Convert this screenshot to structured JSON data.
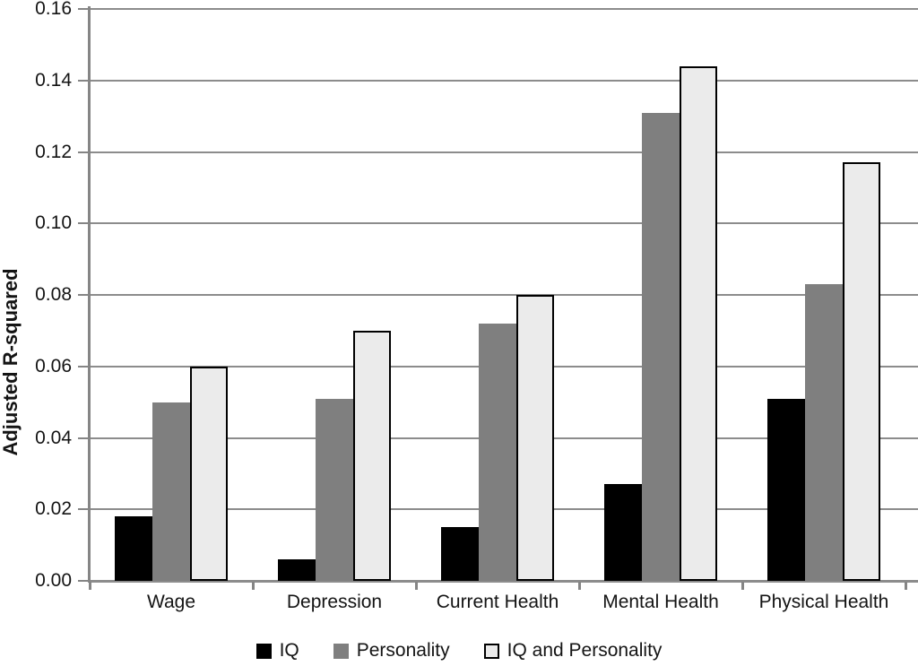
{
  "chart_data": {
    "type": "bar",
    "title": "",
    "xlabel": "",
    "ylabel": "Adjusted R-squared",
    "ylim": [
      0,
      0.16
    ],
    "ytick_step": 0.02,
    "ytick_labels": [
      "0.00",
      "0.02",
      "0.04",
      "0.06",
      "0.08",
      "0.10",
      "0.12",
      "0.14",
      "0.16"
    ],
    "grid": true,
    "legend_position": "bottom",
    "categories": [
      "Wage",
      "Depression",
      "Current Health",
      "Mental Health",
      "Physical Health"
    ],
    "series": [
      {
        "name": "IQ",
        "color": "#000000",
        "border": "#000000",
        "values": [
          0.018,
          0.006,
          0.015,
          0.027,
          0.051
        ]
      },
      {
        "name": "Personality",
        "color": "#7f7f7f",
        "border": "#7f7f7f",
        "values": [
          0.05,
          0.051,
          0.072,
          0.131,
          0.083
        ]
      },
      {
        "name": "IQ and Personality",
        "color": "#ebebeb",
        "border": "#000000",
        "values": [
          0.06,
          0.07,
          0.08,
          0.144,
          0.117
        ]
      }
    ],
    "colors": {
      "gridline": "#8c8c8c",
      "axis": "#858585",
      "text": "#141414",
      "background": "#ffffff"
    }
  }
}
